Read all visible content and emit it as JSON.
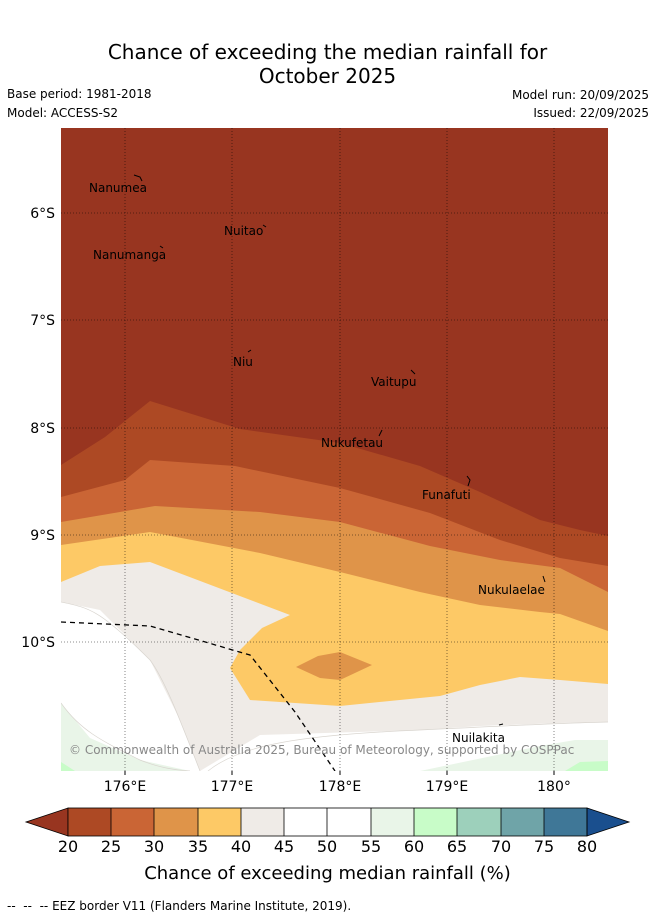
{
  "header": {
    "title_line1": "Chance of exceeding the median rainfall for",
    "title_line2": "October 2025",
    "base_period": "Base period: 1981-2018",
    "model": "Model: ACCESS-S2",
    "model_run": "Model run: 20/09/2025",
    "issued": "Issued: 22/09/2025"
  },
  "map": {
    "lon_ticks": [
      "176°E",
      "177°E",
      "178°E",
      "179°E",
      "180°"
    ],
    "lat_ticks": [
      "6°S",
      "7°S",
      "8°S",
      "9°S",
      "10°S"
    ],
    "islands": [
      "Nanumea",
      "Nuitao",
      "Nanumanga",
      "Niu",
      "Vaitupu",
      "Nukufetau",
      "Funafuti",
      "Nukulaelae",
      "Nuilakita"
    ],
    "copyright": "© Commonwealth of Australia 2025, Bureau of Meteorology, supported by COSPPac"
  },
  "colorbar": {
    "labels": [
      "20",
      "25",
      "30",
      "35",
      "40",
      "45",
      "50",
      "55",
      "60",
      "65",
      "70",
      "75",
      "80"
    ],
    "colors": [
      "#983520",
      "#ad4924",
      "#ca6535",
      "#df9449",
      "#fdc966",
      "#efebe7",
      "#ffffff",
      "#ffffff",
      "#e9f5e8",
      "#c8fcc8",
      "#9dd0bb",
      "#6fa4a8",
      "#3f7797",
      "#1a4f8e"
    ],
    "title": "Chance of exceeding median rainfall (%)"
  },
  "footer": {
    "eez_note": "EEZ border V11 (Flanders Marine Institute, 2019)."
  }
}
